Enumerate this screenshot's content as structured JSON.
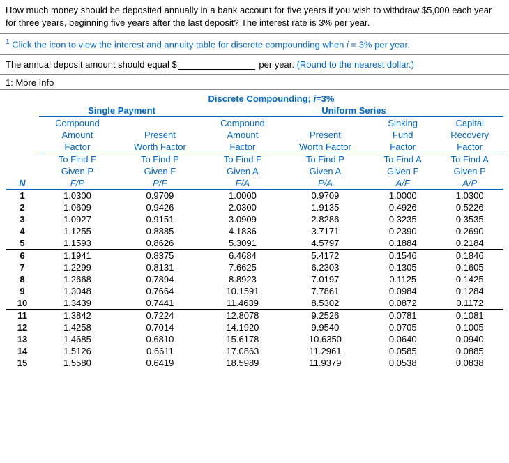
{
  "question": "How much money should be deposited annually in a bank account for five years if you wish to withdraw $5,000 each year for three years, beginning five years after the last deposit? The interest rate is 3% per year.",
  "footnote": {
    "sup": "1",
    "pre": " Click the icon to view the interest and annuity table for discrete compounding when ",
    "i": "i",
    "post": " = 3% per year."
  },
  "answer": {
    "pre": "The annual deposit amount should equal $",
    "post": " per year. ",
    "hint": "(Round to the nearest dollar.)"
  },
  "more_info_label": "1: More Info",
  "table": {
    "title_pre": "Discrete Compounding; ",
    "title_i": "i",
    "title_post": "=3%",
    "group1": "Single Payment",
    "group2": "Uniform Series",
    "h1": [
      "Compound",
      "Amount",
      "Factor"
    ],
    "h2": [
      "Present",
      "Worth Factor"
    ],
    "h3": [
      "Compound",
      "Amount",
      "Factor"
    ],
    "h4": [
      "Present",
      "Worth Factor"
    ],
    "h5": [
      "Sinking",
      "Fund",
      "Factor"
    ],
    "h6": [
      "Capital",
      "Recovery",
      "Factor"
    ],
    "sub": [
      [
        "To Find F",
        "Given P",
        "F/P"
      ],
      [
        "To Find P",
        "Given F",
        "P/F"
      ],
      [
        "To Find F",
        "Given A",
        "F/A"
      ],
      [
        "To Find P",
        "Given A",
        "P/A"
      ],
      [
        "To Find A",
        "Given F",
        "A/F"
      ],
      [
        "To Find A",
        "Given P",
        "A/P"
      ]
    ],
    "n_label": "N",
    "rows": [
      [
        "1",
        "1.0300",
        "0.9709",
        "1.0000",
        "0.9709",
        "1.0000",
        "1.0300"
      ],
      [
        "2",
        "1.0609",
        "0.9426",
        "2.0300",
        "1.9135",
        "0.4926",
        "0.5226"
      ],
      [
        "3",
        "1.0927",
        "0.9151",
        "3.0909",
        "2.8286",
        "0.3235",
        "0.3535"
      ],
      [
        "4",
        "1.1255",
        "0.8885",
        "4.1836",
        "3.7171",
        "0.2390",
        "0.2690"
      ],
      [
        "5",
        "1.1593",
        "0.8626",
        "5.3091",
        "4.5797",
        "0.1884",
        "0.2184"
      ],
      [
        "6",
        "1.1941",
        "0.8375",
        "6.4684",
        "5.4172",
        "0.1546",
        "0.1846"
      ],
      [
        "7",
        "1.2299",
        "0.8131",
        "7.6625",
        "6.2303",
        "0.1305",
        "0.1605"
      ],
      [
        "8",
        "1.2668",
        "0.7894",
        "8.8923",
        "7.0197",
        "0.1125",
        "0.1425"
      ],
      [
        "9",
        "1.3048",
        "0.7664",
        "10.1591",
        "7.7861",
        "0.0984",
        "0.1284"
      ],
      [
        "10",
        "1.3439",
        "0.7441",
        "11.4639",
        "8.5302",
        "0.0872",
        "0.1172"
      ],
      [
        "11",
        "1.3842",
        "0.7224",
        "12.8078",
        "9.2526",
        "0.0781",
        "0.1081"
      ],
      [
        "12",
        "1.4258",
        "0.7014",
        "14.1920",
        "9.9540",
        "0.0705",
        "0.1005"
      ],
      [
        "13",
        "1.4685",
        "0.6810",
        "15.6178",
        "10.6350",
        "0.0640",
        "0.0940"
      ],
      [
        "14",
        "1.5126",
        "0.6611",
        "17.0863",
        "11.2961",
        "0.0585",
        "0.0885"
      ],
      [
        "15",
        "1.5580",
        "0.6419",
        "18.5989",
        "11.9379",
        "0.0538",
        "0.0838"
      ]
    ]
  }
}
